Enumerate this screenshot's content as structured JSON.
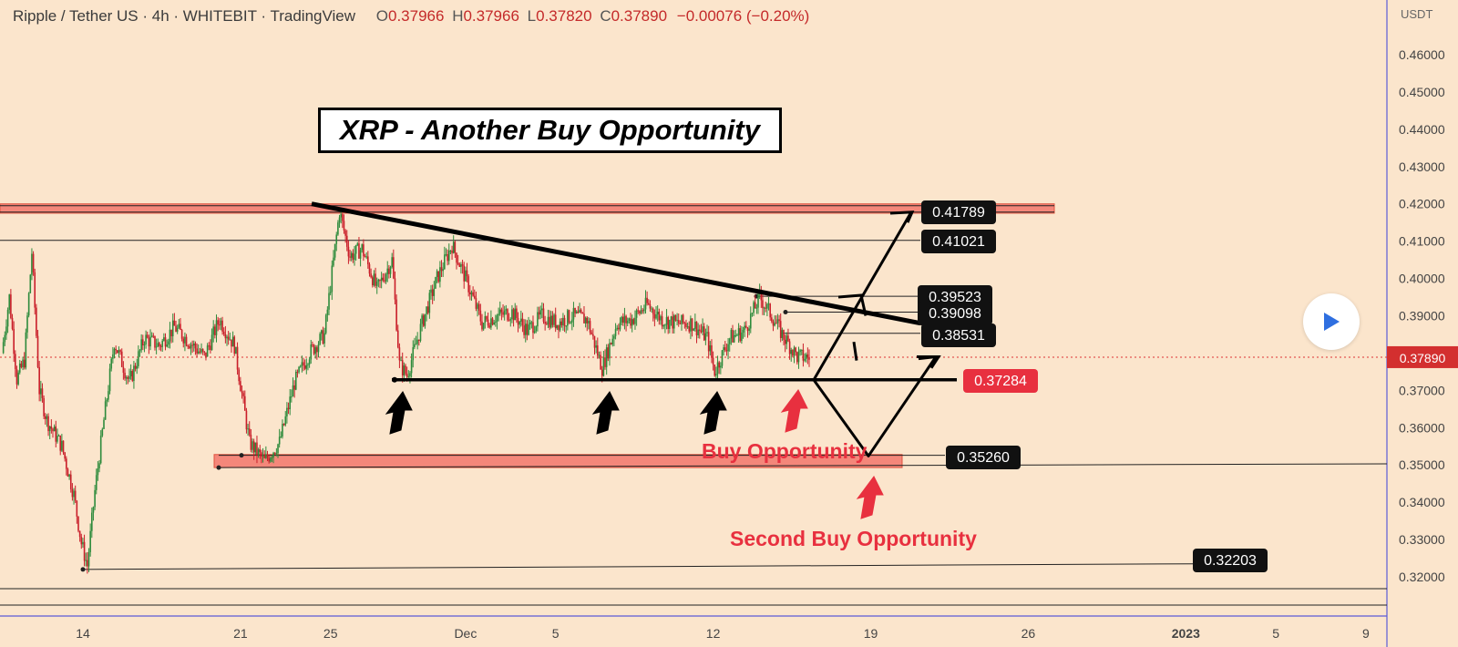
{
  "header": {
    "symbol": "Ripple / Tether US · 4h · WHITEBIT · TradingView",
    "o_label": "O",
    "o": "0.37966",
    "h_label": "H",
    "h": "0.37966",
    "l_label": "L",
    "l": "0.37820",
    "c_label": "C",
    "c": "0.37890",
    "change": "−0.00076 (−0.20%)"
  },
  "title": "XRP - Another Buy Opportunity",
  "annotations": {
    "buy": "Buy Opportunity",
    "second_buy": "Second Buy Opportunity"
  },
  "icons": {
    "play": "play-icon"
  },
  "colors": {
    "background": "#fbe5cc",
    "up": "#2e8b3c",
    "down": "#c91f2a",
    "zone": "#f4877a",
    "accent": "#e8303f",
    "axis": "#5b5bd6"
  },
  "chart_data": {
    "type": "candlestick",
    "symbol": "XRP/USDT",
    "timeframe": "4h",
    "y_unit": "USDT",
    "ylim": [
      0.311,
      0.4675
    ],
    "y_ticks": [
      "0.46000",
      "0.45000",
      "0.44000",
      "0.43000",
      "0.42000",
      "0.41000",
      "0.40000",
      "0.39000",
      "0.37000",
      "0.36000",
      "0.35000",
      "0.34000",
      "0.33000",
      "0.32000"
    ],
    "x_ticks": [
      "14",
      "21",
      "25",
      "Dec",
      "5",
      "12",
      "19",
      "26",
      "2023",
      "5",
      "9"
    ],
    "current_price": "0.37890",
    "price_labels": [
      "0.41789",
      "0.41021",
      "0.39523",
      "0.39098",
      "0.38531",
      "0.37284",
      "0.35260",
      "0.32203"
    ],
    "resistance_zone": [
      0.4175,
      0.42
    ],
    "support_zone": [
      0.3493,
      0.3528
    ],
    "support_line": 0.37284,
    "horizontal_levels": [
      0.41021,
      0.39523,
      0.39098,
      0.38531
    ],
    "low_level": 0.32203,
    "trendline": [
      [
        "Nov 25",
        0.42
      ],
      [
        "Dec 19",
        0.388
      ]
    ],
    "price_path": [
      [
        0,
        0.38
      ],
      [
        5,
        0.395
      ],
      [
        10,
        0.373
      ],
      [
        15,
        0.378
      ],
      [
        20,
        0.407
      ],
      [
        25,
        0.37
      ],
      [
        30,
        0.362
      ],
      [
        40,
        0.355
      ],
      [
        48,
        0.342
      ],
      [
        53,
        0.329
      ],
      [
        57,
        0.323
      ],
      [
        62,
        0.343
      ],
      [
        68,
        0.362
      ],
      [
        75,
        0.383
      ],
      [
        85,
        0.372
      ],
      [
        95,
        0.384
      ],
      [
        105,
        0.382
      ],
      [
        115,
        0.387
      ],
      [
        125,
        0.383
      ],
      [
        135,
        0.379
      ],
      [
        145,
        0.389
      ],
      [
        155,
        0.382
      ],
      [
        165,
        0.356
      ],
      [
        175,
        0.351
      ],
      [
        185,
        0.356
      ],
      [
        195,
        0.372
      ],
      [
        205,
        0.38
      ],
      [
        215,
        0.385
      ],
      [
        225,
        0.418
      ],
      [
        232,
        0.406
      ],
      [
        240,
        0.408
      ],
      [
        250,
        0.397
      ],
      [
        260,
        0.405
      ],
      [
        265,
        0.377
      ],
      [
        270,
        0.374
      ],
      [
        280,
        0.388
      ],
      [
        290,
        0.4
      ],
      [
        300,
        0.409
      ],
      [
        310,
        0.399
      ],
      [
        320,
        0.388
      ],
      [
        330,
        0.39
      ],
      [
        340,
        0.391
      ],
      [
        350,
        0.386
      ],
      [
        360,
        0.39
      ],
      [
        370,
        0.388
      ],
      [
        380,
        0.39
      ],
      [
        390,
        0.389
      ],
      [
        400,
        0.376
      ],
      [
        410,
        0.388
      ],
      [
        420,
        0.389
      ],
      [
        430,
        0.393
      ],
      [
        440,
        0.389
      ],
      [
        450,
        0.388
      ],
      [
        460,
        0.388
      ],
      [
        470,
        0.384
      ],
      [
        475,
        0.375
      ],
      [
        485,
        0.384
      ],
      [
        495,
        0.386
      ],
      [
        505,
        0.395
      ],
      [
        513,
        0.39
      ],
      [
        520,
        0.385
      ],
      [
        530,
        0.379
      ],
      [
        538,
        0.3789
      ]
    ]
  }
}
